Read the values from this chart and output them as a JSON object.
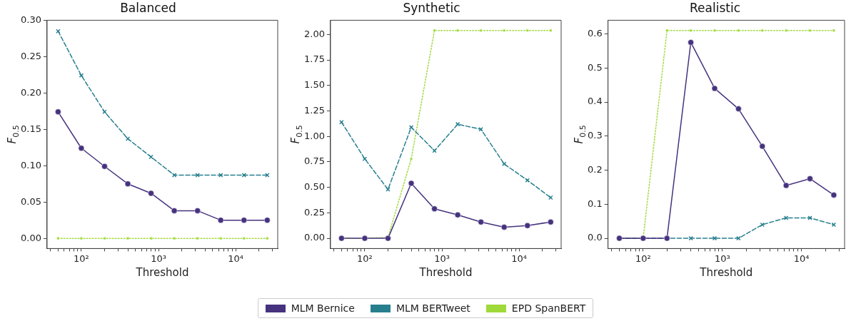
{
  "chart_data": [
    {
      "type": "line",
      "title": "Balanced",
      "xlabel": "Threshold",
      "ylabel": "F$_{0.5}$",
      "log": "x",
      "legend": "bottom",
      "grid": false,
      "x": [
        50,
        100,
        200,
        400,
        800,
        1600,
        3200,
        6400,
        12800,
        25600
      ],
      "xlim": [
        36,
        35000
      ],
      "xticks": [
        {
          "value": 40,
          "label": null
        },
        {
          "value": 50,
          "label": null
        },
        {
          "value": 60,
          "label": null
        },
        {
          "value": 70,
          "label": null
        },
        {
          "value": 80,
          "label": null
        },
        {
          "value": 90,
          "label": null
        },
        {
          "value": 100,
          "label": "10²"
        },
        {
          "value": 200,
          "label": null
        },
        {
          "value": 300,
          "label": null
        },
        {
          "value": 400,
          "label": null
        },
        {
          "value": 500,
          "label": null
        },
        {
          "value": 600,
          "label": null
        },
        {
          "value": 700,
          "label": null
        },
        {
          "value": 800,
          "label": null
        },
        {
          "value": 900,
          "label": null
        },
        {
          "value": 1000,
          "label": "10³"
        },
        {
          "value": 2000,
          "label": null
        },
        {
          "value": 3000,
          "label": null
        },
        {
          "value": 4000,
          "label": null
        },
        {
          "value": 5000,
          "label": null
        },
        {
          "value": 6000,
          "label": null
        },
        {
          "value": 7000,
          "label": null
        },
        {
          "value": 8000,
          "label": null
        },
        {
          "value": 9000,
          "label": null
        },
        {
          "value": 10000,
          "label": "10⁴"
        },
        {
          "value": 20000,
          "label": null
        },
        {
          "value": 30000,
          "label": null
        }
      ],
      "ylim": [
        -0.014,
        0.3
      ],
      "yticks": [
        {
          "value": 0,
          "label": "0.00"
        },
        {
          "value": 0.05,
          "label": "0.05"
        },
        {
          "value": 0.1,
          "label": "0.10"
        },
        {
          "value": 0.15,
          "label": "0.15"
        },
        {
          "value": 0.2,
          "label": "0.20"
        },
        {
          "value": 0.25,
          "label": "0.25"
        },
        {
          "value": 0.3,
          "label": "0.30"
        }
      ],
      "series": [
        {
          "name": "MLM Bernice",
          "color": "#46327e",
          "marker": "circle",
          "line_style": "solid",
          "values": [
            0.174,
            0.124,
            0.099,
            0.075,
            0.062,
            0.038,
            0.038,
            0.025,
            0.025,
            0.025
          ]
        },
        {
          "name": "MLM BERTweet",
          "color": "#277f8e",
          "marker": "cross",
          "line_style": "dashed",
          "values": [
            0.285,
            0.224,
            0.174,
            0.137,
            0.112,
            0.087,
            0.087,
            0.087,
            0.087,
            0.087
          ]
        },
        {
          "name": "EPD SpanBERT",
          "color": "#9fda3a",
          "marker": "square",
          "line_style": "dotted",
          "values": [
            0,
            0,
            0,
            0,
            0,
            0,
            0,
            0,
            0,
            0
          ]
        }
      ]
    },
    {
      "type": "line",
      "title": "Synthetic",
      "xlabel": "Threshold",
      "ylabel": "F$_{0.5}$",
      "log": "x",
      "legend": "bottom",
      "grid": false,
      "x": [
        50,
        100,
        200,
        400,
        800,
        1600,
        3200,
        6400,
        12800,
        25600
      ],
      "xlim": [
        36,
        35000
      ],
      "xticks": [
        {
          "value": 40,
          "label": null
        },
        {
          "value": 50,
          "label": null
        },
        {
          "value": 60,
          "label": null
        },
        {
          "value": 70,
          "label": null
        },
        {
          "value": 80,
          "label": null
        },
        {
          "value": 90,
          "label": null
        },
        {
          "value": 100,
          "label": "10²"
        },
        {
          "value": 200,
          "label": null
        },
        {
          "value": 300,
          "label": null
        },
        {
          "value": 400,
          "label": null
        },
        {
          "value": 500,
          "label": null
        },
        {
          "value": 600,
          "label": null
        },
        {
          "value": 700,
          "label": null
        },
        {
          "value": 800,
          "label": null
        },
        {
          "value": 900,
          "label": null
        },
        {
          "value": 1000,
          "label": "10³"
        },
        {
          "value": 2000,
          "label": null
        },
        {
          "value": 3000,
          "label": null
        },
        {
          "value": 4000,
          "label": null
        },
        {
          "value": 5000,
          "label": null
        },
        {
          "value": 6000,
          "label": null
        },
        {
          "value": 7000,
          "label": null
        },
        {
          "value": 8000,
          "label": null
        },
        {
          "value": 9000,
          "label": null
        },
        {
          "value": 10000,
          "label": "10⁴"
        },
        {
          "value": 20000,
          "label": null
        },
        {
          "value": 30000,
          "label": null
        }
      ],
      "ylim": [
        -0.1,
        2.14
      ],
      "yticks": [
        {
          "value": 0,
          "label": "0.00"
        },
        {
          "value": 0.25,
          "label": "0.25"
        },
        {
          "value": 0.5,
          "label": "0.50"
        },
        {
          "value": 0.75,
          "label": "0.75"
        },
        {
          "value": 1,
          "label": "1.00"
        },
        {
          "value": 1.25,
          "label": "1.25"
        },
        {
          "value": 1.5,
          "label": "1.50"
        },
        {
          "value": 1.75,
          "label": "1.75"
        },
        {
          "value": 2,
          "label": "2.00"
        }
      ],
      "series": [
        {
          "name": "MLM Bernice",
          "color": "#46327e",
          "marker": "circle",
          "line_style": "solid",
          "values": [
            0,
            0,
            0,
            0.54,
            0.29,
            0.23,
            0.16,
            0.11,
            0.125,
            0.16
          ]
        },
        {
          "name": "MLM BERTweet",
          "color": "#277f8e",
          "marker": "cross",
          "line_style": "dashed",
          "values": [
            1.14,
            0.78,
            0.48,
            1.09,
            0.86,
            1.12,
            1.07,
            0.73,
            0.57,
            0.4
          ]
        },
        {
          "name": "EPD SpanBERT",
          "color": "#9fda3a",
          "marker": "square",
          "line_style": "dotted",
          "values": [
            0,
            0,
            0.01,
            0.78,
            2.04,
            2.04,
            2.04,
            2.04,
            2.04,
            2.04
          ]
        }
      ]
    },
    {
      "type": "line",
      "title": "Realistic",
      "xlabel": "Threshold",
      "ylabel": "F$_{0.5}$",
      "log": "x",
      "legend": "bottom",
      "grid": false,
      "x": [
        50,
        100,
        200,
        400,
        800,
        1600,
        3200,
        6400,
        12800,
        25600
      ],
      "xlim": [
        36,
        35000
      ],
      "xticks": [
        {
          "value": 40,
          "label": null
        },
        {
          "value": 50,
          "label": null
        },
        {
          "value": 60,
          "label": null
        },
        {
          "value": 70,
          "label": null
        },
        {
          "value": 80,
          "label": null
        },
        {
          "value": 90,
          "label": null
        },
        {
          "value": 100,
          "label": "10²"
        },
        {
          "value": 200,
          "label": null
        },
        {
          "value": 300,
          "label": null
        },
        {
          "value": 400,
          "label": null
        },
        {
          "value": 500,
          "label": null
        },
        {
          "value": 600,
          "label": null
        },
        {
          "value": 700,
          "label": null
        },
        {
          "value": 800,
          "label": null
        },
        {
          "value": 900,
          "label": null
        },
        {
          "value": 1000,
          "label": "10³"
        },
        {
          "value": 2000,
          "label": null
        },
        {
          "value": 3000,
          "label": null
        },
        {
          "value": 4000,
          "label": null
        },
        {
          "value": 5000,
          "label": null
        },
        {
          "value": 6000,
          "label": null
        },
        {
          "value": 7000,
          "label": null
        },
        {
          "value": 8000,
          "label": null
        },
        {
          "value": 9000,
          "label": null
        },
        {
          "value": 10000,
          "label": "10⁴"
        },
        {
          "value": 20000,
          "label": null
        },
        {
          "value": 30000,
          "label": null
        }
      ],
      "ylim": [
        -0.03,
        0.64
      ],
      "yticks": [
        {
          "value": 0,
          "label": "0.0"
        },
        {
          "value": 0.1,
          "label": "0.1"
        },
        {
          "value": 0.2,
          "label": "0.2"
        },
        {
          "value": 0.3,
          "label": "0.3"
        },
        {
          "value": 0.4,
          "label": "0.4"
        },
        {
          "value": 0.5,
          "label": "0.5"
        },
        {
          "value": 0.6,
          "label": "0.6"
        }
      ],
      "series": [
        {
          "name": "MLM Bernice",
          "color": "#46327e",
          "marker": "circle",
          "line_style": "solid",
          "values": [
            0,
            0,
            0,
            0.575,
            0.44,
            0.38,
            0.27,
            0.155,
            0.175,
            0.127
          ]
        },
        {
          "name": "MLM BERTweet",
          "color": "#277f8e",
          "marker": "cross",
          "line_style": "dashed",
          "values": [
            0,
            0,
            0,
            0,
            0,
            0,
            0.04,
            0.06,
            0.06,
            0.04
          ]
        },
        {
          "name": "EPD SpanBERT",
          "color": "#9fda3a",
          "marker": "square",
          "line_style": "dotted",
          "values": [
            0,
            0,
            0.61,
            0.61,
            0.61,
            0.61,
            0.61,
            0.61,
            0.61,
            0.61
          ]
        }
      ]
    }
  ]
}
